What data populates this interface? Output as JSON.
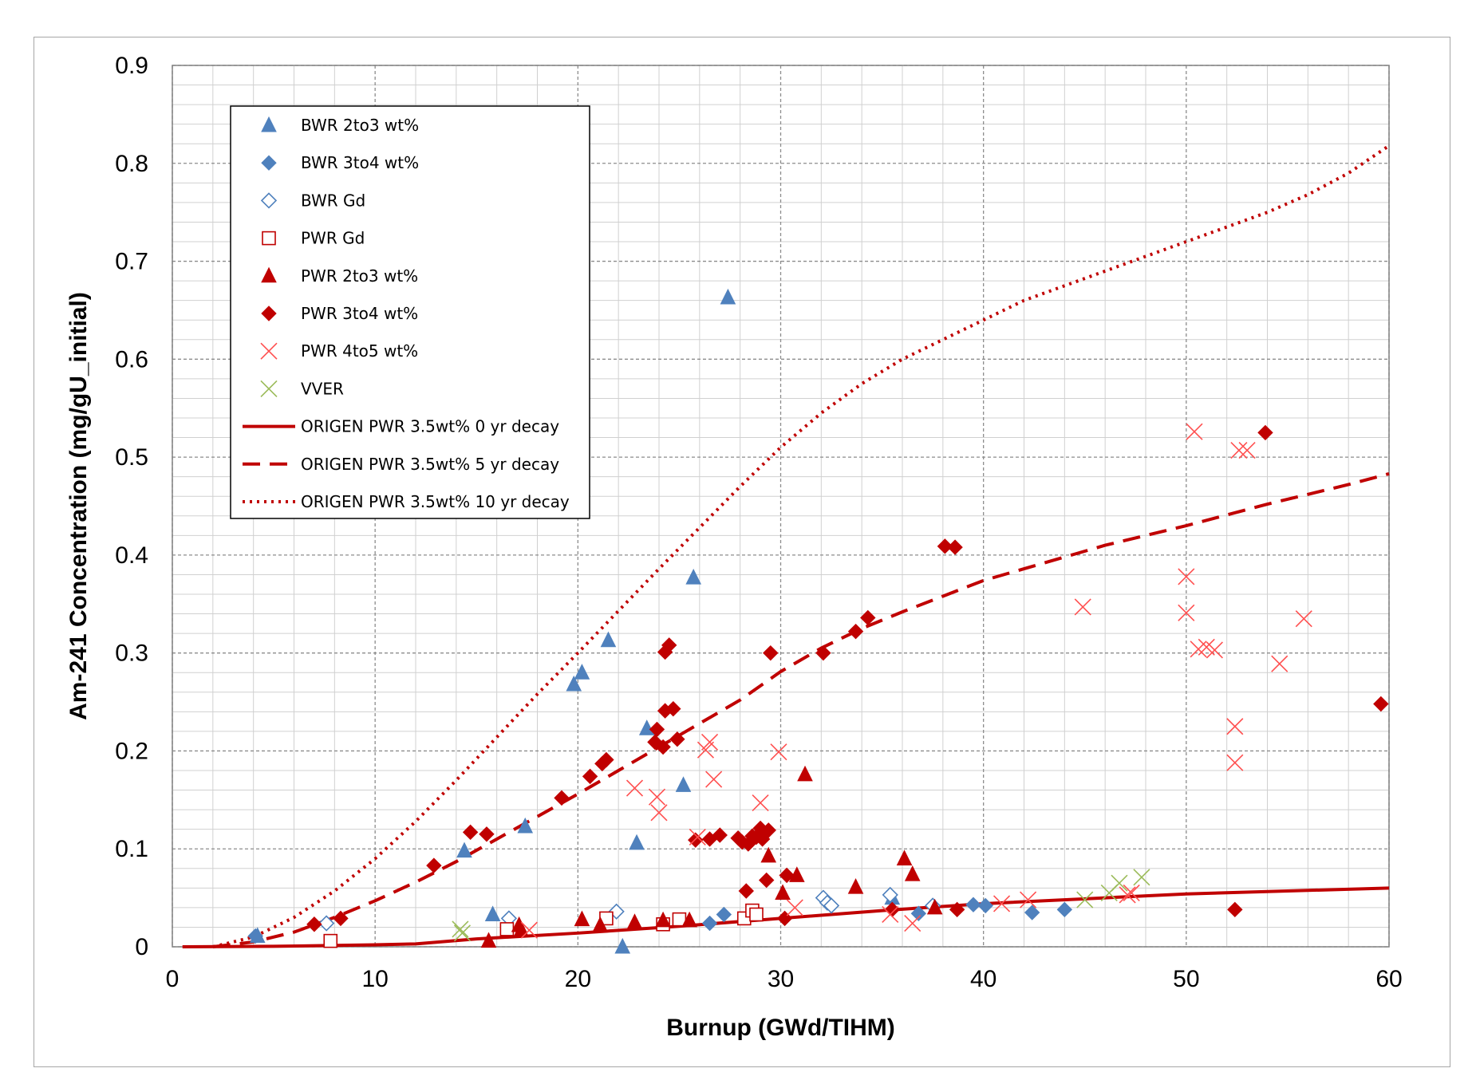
{
  "chart_data": {
    "type": "scatter",
    "xlabel": "Burnup (GWd/TIHM)",
    "ylabel": "Am-241 Concentration (mg/gU_initial)",
    "xlim": [
      0,
      60
    ],
    "ylim": [
      0,
      0.9
    ],
    "x_ticks": [
      0,
      10,
      20,
      30,
      40,
      50,
      60
    ],
    "y_ticks": [
      0,
      0.1,
      0.2,
      0.3,
      0.4,
      0.5,
      0.6,
      0.7,
      0.8,
      0.9
    ],
    "x_tick_labels": [
      "0",
      "10",
      "20",
      "30",
      "40",
      "50",
      "60"
    ],
    "y_tick_labels": [
      "0",
      "0.1",
      "0.2",
      "0.3",
      "0.4",
      "0.5",
      "0.6",
      "0.7",
      "0.8",
      "0.9"
    ],
    "grid": true,
    "legend_position": "top-left",
    "series": [
      {
        "name": "BWR 2to3 wt%",
        "marker": "triangle",
        "filled": true,
        "color": "#4f81bd",
        "points": [
          [
            4.2,
            0.011
          ],
          [
            14.4,
            0.098
          ],
          [
            15.8,
            0.033
          ],
          [
            17.4,
            0.123
          ],
          [
            19.8,
            0.268
          ],
          [
            20.2,
            0.28
          ],
          [
            21.5,
            0.313
          ],
          [
            22.2,
            0.0
          ],
          [
            22.9,
            0.106
          ],
          [
            23.4,
            0.223
          ],
          [
            25.2,
            0.165
          ],
          [
            25.7,
            0.377
          ],
          [
            27.4,
            0.663
          ],
          [
            35.5,
            0.05
          ]
        ]
      },
      {
        "name": "BWR 3to4 wt%",
        "marker": "diamond",
        "filled": true,
        "color": "#4f81bd",
        "points": [
          [
            4.1,
            0.011
          ],
          [
            26.5,
            0.024
          ],
          [
            27.2,
            0.033
          ],
          [
            36.8,
            0.034
          ],
          [
            39.5,
            0.043
          ],
          [
            40.1,
            0.042
          ],
          [
            42.4,
            0.035
          ],
          [
            44.0,
            0.038
          ]
        ]
      },
      {
        "name": "BWR Gd",
        "marker": "diamond",
        "filled": false,
        "color": "#4f81bd",
        "points": [
          [
            7.6,
            0.024
          ],
          [
            16.6,
            0.029
          ],
          [
            21.9,
            0.036
          ],
          [
            32.1,
            0.05
          ],
          [
            32.3,
            0.045
          ],
          [
            32.5,
            0.042
          ],
          [
            35.4,
            0.053
          ],
          [
            37.5,
            0.042
          ]
        ]
      },
      {
        "name": "PWR Gd",
        "marker": "square",
        "filled": false,
        "color": "#c00000",
        "points": [
          [
            7.8,
            0.006
          ],
          [
            16.5,
            0.018
          ],
          [
            21.4,
            0.029
          ],
          [
            24.2,
            0.023
          ],
          [
            25.0,
            0.028
          ],
          [
            28.2,
            0.029
          ],
          [
            28.6,
            0.037
          ],
          [
            28.8,
            0.033
          ]
        ]
      },
      {
        "name": "PWR 2to3 wt%",
        "marker": "triangle",
        "filled": true,
        "color": "#c00000",
        "points": [
          [
            15.6,
            0.006
          ],
          [
            17.1,
            0.022
          ],
          [
            17.2,
            0.017
          ],
          [
            20.2,
            0.028
          ],
          [
            21.1,
            0.022
          ],
          [
            22.8,
            0.025
          ],
          [
            24.2,
            0.027
          ],
          [
            25.5,
            0.027
          ],
          [
            29.4,
            0.093
          ],
          [
            30.1,
            0.055
          ],
          [
            30.8,
            0.073
          ],
          [
            31.2,
            0.176
          ],
          [
            33.7,
            0.061
          ],
          [
            36.1,
            0.09
          ],
          [
            36.5,
            0.074
          ],
          [
            37.6,
            0.04
          ]
        ]
      },
      {
        "name": "PWR 3to4 wt%",
        "marker": "diamond",
        "filled": true,
        "color": "#c00000",
        "points": [
          [
            7.0,
            0.023
          ],
          [
            8.3,
            0.029
          ],
          [
            12.9,
            0.083
          ],
          [
            14.7,
            0.117
          ],
          [
            15.5,
            0.115
          ],
          [
            19.2,
            0.152
          ],
          [
            20.6,
            0.174
          ],
          [
            21.2,
            0.187
          ],
          [
            21.4,
            0.191
          ],
          [
            23.8,
            0.209
          ],
          [
            23.9,
            0.222
          ],
          [
            24.2,
            0.204
          ],
          [
            24.3,
            0.241
          ],
          [
            24.3,
            0.301
          ],
          [
            24.5,
            0.308
          ],
          [
            24.7,
            0.243
          ],
          [
            24.9,
            0.212
          ],
          [
            25.8,
            0.109
          ],
          [
            26.5,
            0.11
          ],
          [
            27.0,
            0.114
          ],
          [
            27.9,
            0.111
          ],
          [
            28.1,
            0.107
          ],
          [
            28.3,
            0.057
          ],
          [
            28.4,
            0.105
          ],
          [
            28.6,
            0.113
          ],
          [
            28.8,
            0.112
          ],
          [
            29.0,
            0.121
          ],
          [
            29.1,
            0.11
          ],
          [
            29.3,
            0.068
          ],
          [
            29.4,
            0.119
          ],
          [
            29.5,
            0.3
          ],
          [
            30.2,
            0.029
          ],
          [
            30.3,
            0.073
          ],
          [
            32.1,
            0.3
          ],
          [
            33.7,
            0.322
          ],
          [
            34.3,
            0.336
          ],
          [
            35.5,
            0.038
          ],
          [
            38.1,
            0.409
          ],
          [
            38.6,
            0.408
          ],
          [
            38.7,
            0.038
          ],
          [
            52.4,
            0.038
          ],
          [
            53.9,
            0.525
          ],
          [
            59.6,
            0.248
          ]
        ]
      },
      {
        "name": "PWR 4to5 wt%",
        "marker": "x",
        "filled": false,
        "color": "#ff5050",
        "points": [
          [
            17.6,
            0.017
          ],
          [
            22.8,
            0.162
          ],
          [
            23.9,
            0.153
          ],
          [
            24.0,
            0.137
          ],
          [
            25.9,
            0.112
          ],
          [
            26.3,
            0.201
          ],
          [
            26.5,
            0.209
          ],
          [
            26.7,
            0.171
          ],
          [
            29.0,
            0.147
          ],
          [
            29.9,
            0.199
          ],
          [
            30.7,
            0.04
          ],
          [
            35.4,
            0.033
          ],
          [
            36.5,
            0.024
          ],
          [
            40.9,
            0.044
          ],
          [
            42.2,
            0.048
          ],
          [
            44.9,
            0.347
          ],
          [
            47.1,
            0.053
          ],
          [
            47.3,
            0.055
          ],
          [
            50.0,
            0.378
          ],
          [
            50.0,
            0.341
          ],
          [
            50.4,
            0.526
          ],
          [
            50.6,
            0.304
          ],
          [
            51.0,
            0.306
          ],
          [
            51.4,
            0.303
          ],
          [
            52.4,
            0.225
          ],
          [
            52.4,
            0.188
          ],
          [
            52.6,
            0.507
          ],
          [
            53.0,
            0.507
          ],
          [
            54.6,
            0.289
          ],
          [
            55.8,
            0.335
          ]
        ]
      },
      {
        "name": "VVER",
        "marker": "x",
        "filled": false,
        "color": "#9bbb59",
        "points": [
          [
            14.2,
            0.018
          ],
          [
            14.3,
            0.014
          ],
          [
            45.0,
            0.048
          ],
          [
            46.2,
            0.055
          ],
          [
            46.7,
            0.065
          ],
          [
            47.8,
            0.071
          ]
        ]
      },
      {
        "name": "ORIGEN PWR 3.5wt% 0 yr decay",
        "marker": "line",
        "dash": "solid",
        "color": "#c00000",
        "points": [
          [
            0.5,
            0.0
          ],
          [
            5,
            0.0005
          ],
          [
            10,
            0.002
          ],
          [
            12,
            0.003
          ],
          [
            15,
            0.008
          ],
          [
            20,
            0.014
          ],
          [
            25,
            0.021
          ],
          [
            30,
            0.029
          ],
          [
            35,
            0.037
          ],
          [
            40,
            0.044
          ],
          [
            45,
            0.049
          ],
          [
            50,
            0.054
          ],
          [
            55,
            0.057
          ],
          [
            60,
            0.06
          ]
        ]
      },
      {
        "name": "ORIGEN PWR 3.5wt% 5 yr decay",
        "marker": "line",
        "dash": "dashed",
        "color": "#c00000",
        "points": [
          [
            2,
            0.0
          ],
          [
            4,
            0.005
          ],
          [
            6,
            0.015
          ],
          [
            8,
            0.03
          ],
          [
            10,
            0.047
          ],
          [
            12,
            0.066
          ],
          [
            14,
            0.087
          ],
          [
            16,
            0.11
          ],
          [
            18,
            0.133
          ],
          [
            20,
            0.156
          ],
          [
            22,
            0.18
          ],
          [
            24,
            0.204
          ],
          [
            26,
            0.228
          ],
          [
            28,
            0.252
          ],
          [
            30,
            0.281
          ],
          [
            32,
            0.305
          ],
          [
            34,
            0.325
          ],
          [
            36,
            0.342
          ],
          [
            38,
            0.358
          ],
          [
            40,
            0.374
          ],
          [
            42,
            0.386
          ],
          [
            44,
            0.398
          ],
          [
            46,
            0.41
          ],
          [
            48,
            0.42
          ],
          [
            50,
            0.43
          ],
          [
            52,
            0.441
          ],
          [
            54,
            0.452
          ],
          [
            56,
            0.462
          ],
          [
            58,
            0.472
          ],
          [
            60,
            0.483
          ]
        ]
      },
      {
        "name": "ORIGEN PWR 3.5wt% 10 yr decay",
        "marker": "line",
        "dash": "dotted",
        "color": "#c00000",
        "points": [
          [
            2,
            0.0
          ],
          [
            4,
            0.01
          ],
          [
            6,
            0.03
          ],
          [
            8,
            0.057
          ],
          [
            10,
            0.09
          ],
          [
            12,
            0.128
          ],
          [
            14,
            0.17
          ],
          [
            16,
            0.214
          ],
          [
            18,
            0.258
          ],
          [
            20,
            0.3
          ],
          [
            22,
            0.343
          ],
          [
            24,
            0.386
          ],
          [
            26,
            0.428
          ],
          [
            28,
            0.47
          ],
          [
            30,
            0.51
          ],
          [
            32,
            0.545
          ],
          [
            34,
            0.575
          ],
          [
            36,
            0.6
          ],
          [
            38,
            0.62
          ],
          [
            40,
            0.64
          ],
          [
            42,
            0.66
          ],
          [
            44,
            0.675
          ],
          [
            46,
            0.69
          ],
          [
            48,
            0.705
          ],
          [
            50,
            0.72
          ],
          [
            52,
            0.735
          ],
          [
            54,
            0.75
          ],
          [
            56,
            0.768
          ],
          [
            58,
            0.79
          ],
          [
            60,
            0.818
          ]
        ]
      }
    ]
  }
}
